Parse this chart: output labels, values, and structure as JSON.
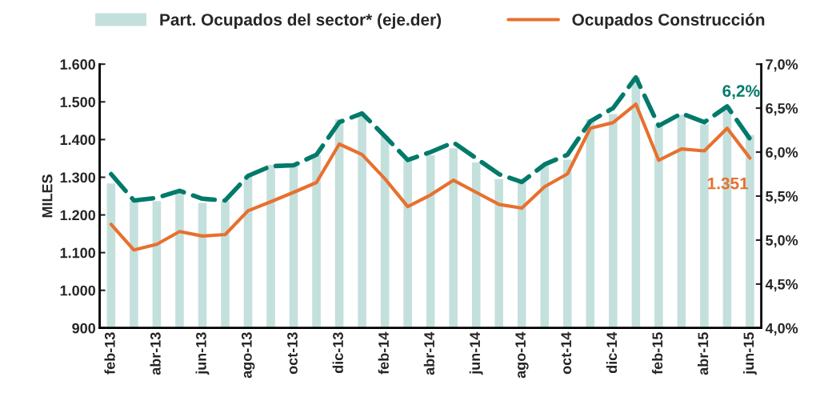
{
  "chart_data": {
    "type": "bar",
    "categories": [
      "feb-13",
      null,
      "abr-13",
      null,
      "jun-13",
      null,
      "ago-13",
      null,
      "oct-13",
      null,
      "dic-13",
      null,
      "feb-14",
      null,
      "abr-14",
      null,
      "jun-14",
      null,
      "ago-14",
      null,
      "oct-14",
      null,
      "dic-14",
      null,
      "feb-15",
      null,
      "abr-15",
      null,
      "jun-15"
    ],
    "series": [
      {
        "name": "Part. Ocupados del sector* (eje.der)",
        "axis": "y2",
        "color": "#c4e0dc",
        "values": [
          5.65,
          5.45,
          5.45,
          5.55,
          5.43,
          5.45,
          5.74,
          5.86,
          5.85,
          5.97,
          6.38,
          6.43,
          6.19,
          5.92,
          5.97,
          6.05,
          5.89,
          5.7,
          5.67,
          5.85,
          5.92,
          6.38,
          6.44,
          6.86,
          6.32,
          6.43,
          6.32,
          6.53,
          6.2
        ]
      },
      {
        "name": "Ocupados Construcción",
        "type": "line",
        "color": "#e8702e",
        "line_style": "solid",
        "values": [
          1175,
          1107,
          1122,
          1156,
          1144,
          1148,
          1211,
          1235,
          1260,
          1286,
          1388,
          1360,
          1296,
          1222,
          1253,
          1292,
          1260,
          1228,
          1218,
          1275,
          1309,
          1430,
          1445,
          1494,
          1345,
          1375,
          1370,
          1430,
          1351
        ]
      },
      {
        "type": "line",
        "axis": "y2",
        "color": "#007a6a",
        "line_style": "dashed",
        "values": [
          5.75,
          5.45,
          5.48,
          5.56,
          5.47,
          5.45,
          5.73,
          5.84,
          5.85,
          5.97,
          6.34,
          6.44,
          6.18,
          5.91,
          6.0,
          6.11,
          5.93,
          5.75,
          5.66,
          5.86,
          5.97,
          6.35,
          6.5,
          6.85,
          6.3,
          6.44,
          6.34,
          6.52,
          6.15
        ]
      }
    ],
    "ylabel": "MILES",
    "ylim": [
      900,
      1600
    ],
    "yticks": [
      {
        "value": 900,
        "label": "900"
      },
      {
        "value": 1000,
        "label": "1.000"
      },
      {
        "value": 1100,
        "label": "1.100"
      },
      {
        "value": 1200,
        "label": "1.200"
      },
      {
        "value": 1300,
        "label": "1.300"
      },
      {
        "value": 1400,
        "label": "1.400"
      },
      {
        "value": 1500,
        "label": "1.500"
      },
      {
        "value": 1600,
        "label": "1.600"
      }
    ],
    "y2lim": [
      4.0,
      7.0
    ],
    "y2ticks": [
      {
        "value": 4.0,
        "label": "4,0%"
      },
      {
        "value": 4.5,
        "label": "4,5%"
      },
      {
        "value": 5.0,
        "label": "5,0%"
      },
      {
        "value": 5.5,
        "label": "5,5%"
      },
      {
        "value": 6.0,
        "label": "6,0%"
      },
      {
        "value": 6.5,
        "label": "6,5%"
      },
      {
        "value": 7.0,
        "label": "7,0%"
      }
    ],
    "annotations": [
      "6,2%",
      "1.351"
    ],
    "grid": false,
    "legend": "top"
  }
}
